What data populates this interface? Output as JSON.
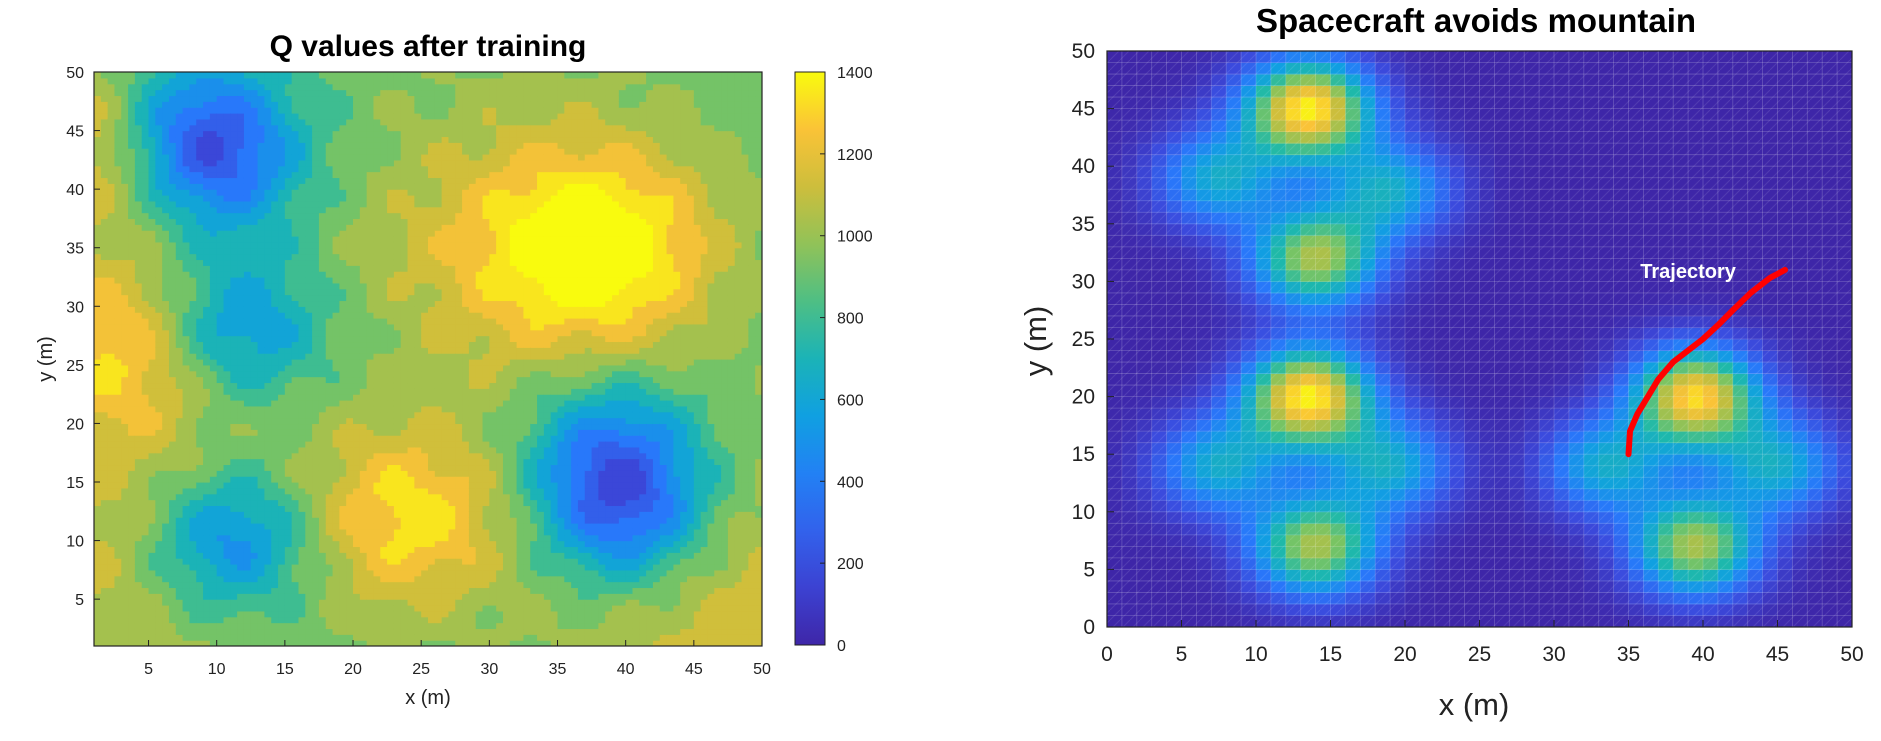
{
  "chart_data": [
    {
      "type": "heatmap",
      "subtype": "filled-contour",
      "title": "Q values after training",
      "xlabel": "x (m)",
      "ylabel": "y (m)",
      "xlim": [
        1,
        50
      ],
      "ylim": [
        1,
        50
      ],
      "x_ticks": [
        5,
        10,
        15,
        20,
        25,
        30,
        35,
        40,
        45,
        50
      ],
      "y_ticks": [
        5,
        10,
        15,
        20,
        25,
        30,
        35,
        40,
        45,
        50
      ],
      "colormap": "parula",
      "colorbar": {
        "range": [
          0,
          1400
        ],
        "ticks": [
          0,
          200,
          400,
          600,
          800,
          1000,
          1200,
          1400
        ],
        "placement": "right"
      },
      "features": [
        {
          "kind": "high",
          "x": 38,
          "y": 35,
          "value": 1350
        },
        {
          "kind": "high",
          "x": 4,
          "y": 27,
          "value": 1350
        },
        {
          "kind": "high",
          "x": 24,
          "y": 12,
          "value": 1330
        },
        {
          "kind": "high",
          "x": 1.5,
          "y": 44,
          "value": 1300
        },
        {
          "kind": "plateau",
          "x": 33,
          "y": 35,
          "value": 1180
        },
        {
          "kind": "plateau",
          "x": 3,
          "y": 10,
          "value": 1150
        },
        {
          "kind": "plateau",
          "x": 47,
          "y": 5,
          "value": 1150
        },
        {
          "kind": "low",
          "x": 10,
          "y": 42,
          "value": 400
        },
        {
          "kind": "low",
          "x": 11,
          "y": 28,
          "value": 380
        },
        {
          "kind": "low",
          "x": 11,
          "y": 10,
          "value": 330
        },
        {
          "kind": "low",
          "x": 40,
          "y": 12,
          "value": 300
        },
        {
          "kind": "low",
          "x": 39,
          "y": 18,
          "value": 420
        },
        {
          "kind": "low",
          "x": 8,
          "y": 46,
          "value": 450
        }
      ]
    },
    {
      "type": "heatmap",
      "title": "Spacecraft avoids mountain",
      "xlabel": "x (m)",
      "ylabel": "y (m)",
      "xlim": [
        0,
        50
      ],
      "ylim": [
        0,
        50
      ],
      "x_ticks": [
        0,
        5,
        10,
        15,
        20,
        25,
        30,
        35,
        40,
        45,
        50
      ],
      "y_ticks": [
        0,
        5,
        10,
        15,
        20,
        25,
        30,
        35,
        40,
        45,
        50
      ],
      "colormap": "parula",
      "grid": true,
      "peaks": [
        {
          "x": 13.5,
          "y": 45,
          "height": 1.0
        },
        {
          "x": 7.5,
          "y": 39,
          "height": 0.45
        },
        {
          "x": 19,
          "y": 38,
          "height": 0.45
        },
        {
          "x": 14,
          "y": 32,
          "height": 0.75
        },
        {
          "x": 13.5,
          "y": 20,
          "height": 1.0
        },
        {
          "x": 7.5,
          "y": 14,
          "height": 0.45
        },
        {
          "x": 19,
          "y": 14,
          "height": 0.45
        },
        {
          "x": 14,
          "y": 7,
          "height": 0.75
        },
        {
          "x": 39.5,
          "y": 20,
          "height": 0.95
        },
        {
          "x": 33.5,
          "y": 14,
          "height": 0.45
        },
        {
          "x": 45,
          "y": 14,
          "height": 0.45
        },
        {
          "x": 39.5,
          "y": 7,
          "height": 0.75
        }
      ],
      "trajectory": {
        "color": "#ff0000",
        "x": [
          35.0,
          35.1,
          35.6,
          36.3,
          37.0,
          38.0,
          39.0,
          40.0,
          41.0,
          42.0,
          43.2,
          44.5,
          45.5
        ],
        "y": [
          15.0,
          17.0,
          18.5,
          20.0,
          21.5,
          23.0,
          24.0,
          25.0,
          26.2,
          27.5,
          29.0,
          30.3,
          31.0
        ]
      },
      "annotation": {
        "text": "Trajectory",
        "x": 39,
        "y": 30.3
      }
    }
  ]
}
